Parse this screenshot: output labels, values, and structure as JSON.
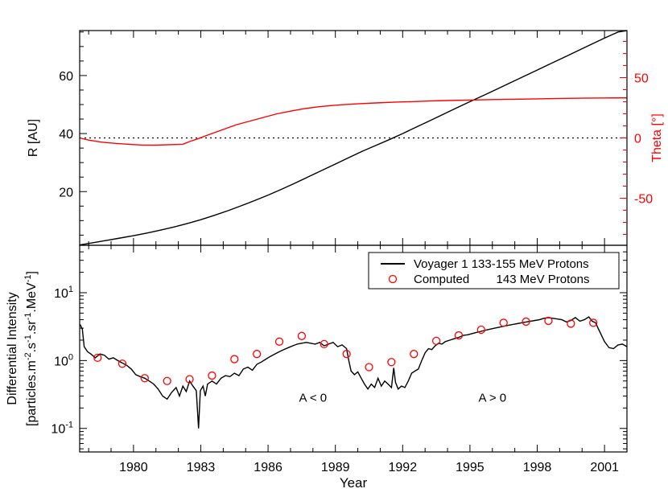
{
  "chart_data": [
    {
      "type": "line",
      "panel": "top",
      "x_range": [
        1977.6,
        2002.0
      ],
      "xticks": [
        1980,
        1983,
        1986,
        1989,
        1992,
        1995,
        1998,
        2001
      ],
      "left_axis": {
        "label": "R [AU]",
        "ylim": [
          1.5,
          75.5
        ],
        "ticks": [
          20,
          40,
          60
        ]
      },
      "right_axis": {
        "label": "Theta [°]",
        "ylim": [
          -89,
          89
        ],
        "ticks": [
          -50,
          0,
          50
        ],
        "color": "#ff0000"
      },
      "reference_line": {
        "axis": "right",
        "value": 0,
        "style": "dotted"
      },
      "series": [
        {
          "axis": "left",
          "color": "#000000",
          "points": [
            [
              1977.6,
              1.6
            ],
            [
              1978.2,
              2.4
            ],
            [
              1978.8,
              3.2
            ],
            [
              1979.4,
              4.0
            ],
            [
              1980.0,
              4.8
            ],
            [
              1980.6,
              5.7
            ],
            [
              1981.2,
              6.7
            ],
            [
              1981.8,
              7.8
            ],
            [
              1982.4,
              9.0
            ],
            [
              1983.0,
              10.3
            ],
            [
              1983.6,
              11.8
            ],
            [
              1984.2,
              13.4
            ],
            [
              1984.8,
              15.1
            ],
            [
              1985.4,
              16.9
            ],
            [
              1986.0,
              18.8
            ],
            [
              1986.6,
              20.8
            ],
            [
              1987.2,
              22.9
            ],
            [
              1987.8,
              25.1
            ],
            [
              1988.4,
              27.3
            ],
            [
              1989.0,
              29.5
            ],
            [
              1989.6,
              31.7
            ],
            [
              1990.2,
              33.9
            ],
            [
              1990.8,
              35.9
            ],
            [
              1991.4,
              37.9
            ],
            [
              1992.0,
              40.0
            ],
            [
              1992.6,
              42.2
            ],
            [
              1993.2,
              44.4
            ],
            [
              1993.8,
              46.6
            ],
            [
              1994.4,
              48.8
            ],
            [
              1995.0,
              51.0
            ],
            [
              1995.6,
              53.1
            ],
            [
              1996.2,
              55.3
            ],
            [
              1996.8,
              57.5
            ],
            [
              1997.4,
              59.7
            ],
            [
              1998.0,
              61.9
            ],
            [
              1998.6,
              64.1
            ],
            [
              1999.2,
              66.3
            ],
            [
              1999.8,
              68.5
            ],
            [
              2000.4,
              70.7
            ],
            [
              2001.0,
              72.9
            ],
            [
              2001.6,
              75.0
            ],
            [
              2002.0,
              75.5
            ]
          ]
        },
        {
          "axis": "right",
          "color": "#ff0000",
          "points": [
            [
              1977.6,
              0.0
            ],
            [
              1978.0,
              -1.8
            ],
            [
              1978.6,
              -3.5
            ],
            [
              1979.2,
              -4.5
            ],
            [
              1979.8,
              -5.3
            ],
            [
              1980.4,
              -5.9
            ],
            [
              1981.0,
              -6.0
            ],
            [
              1981.6,
              -5.6
            ],
            [
              1982.2,
              -5.3
            ],
            [
              1982.5,
              -3.0
            ],
            [
              1982.9,
              -0.5
            ],
            [
              1983.4,
              3.0
            ],
            [
              1984.0,
              7.0
            ],
            [
              1984.6,
              11.0
            ],
            [
              1985.2,
              14.0
            ],
            [
              1985.8,
              17.0
            ],
            [
              1986.4,
              20.0
            ],
            [
              1987.0,
              22.2
            ],
            [
              1987.6,
              24.2
            ],
            [
              1988.2,
              25.7
            ],
            [
              1988.8,
              26.8
            ],
            [
              1989.4,
              27.6
            ],
            [
              1990.0,
              28.3
            ],
            [
              1990.8,
              29.0
            ],
            [
              1991.6,
              29.6
            ],
            [
              1992.4,
              30.1
            ],
            [
              1993.2,
              30.6
            ],
            [
              1994.0,
              31.0
            ],
            [
              1995.0,
              31.4
            ],
            [
              1996.0,
              31.8
            ],
            [
              1997.0,
              32.1
            ],
            [
              1998.0,
              32.4
            ],
            [
              1999.0,
              32.7
            ],
            [
              2000.0,
              32.9
            ],
            [
              2001.0,
              33.1
            ],
            [
              2002.0,
              33.2
            ]
          ]
        }
      ]
    },
    {
      "type": "line",
      "panel": "bottom",
      "xlabel": "Year",
      "x_range": [
        1977.6,
        2002.0
      ],
      "xticks": [
        1980,
        1983,
        1986,
        1989,
        1992,
        1995,
        1998,
        2001
      ],
      "y_axis": {
        "label_line1": "Differential Intensity",
        "label_line2": "[particles.m-2.s-1.sr-1.MeV-1]",
        "scale": "log",
        "ylim": [
          0.045,
          50
        ],
        "ticks": [
          0.1,
          1,
          10
        ]
      },
      "legend": {
        "placement": "top-right",
        "entries": [
          "Voyager 1 133-155 MeV Protons",
          "Computed        143 MeV Protons"
        ]
      },
      "annotations": [
        {
          "text": "A < 0",
          "x": 1988.0,
          "y": 0.29
        },
        {
          "text": "A > 0",
          "x": 1996.0,
          "y": 0.29
        }
      ],
      "series": [
        {
          "name": "Voyager 1 133-155 MeV Protons",
          "color": "#000000",
          "marker": "line",
          "points": [
            [
              1977.62,
              3.4
            ],
            [
              1977.72,
              2.9
            ],
            [
              1977.8,
              1.6
            ],
            [
              1977.95,
              1.35
            ],
            [
              1978.1,
              1.25
            ],
            [
              1978.3,
              1.1
            ],
            [
              1978.5,
              1.25
            ],
            [
              1978.7,
              1.2
            ],
            [
              1978.9,
              1.05
            ],
            [
              1979.1,
              1.1
            ],
            [
              1979.3,
              1.0
            ],
            [
              1979.5,
              0.92
            ],
            [
              1979.7,
              0.85
            ],
            [
              1979.9,
              0.75
            ],
            [
              1980.1,
              0.62
            ],
            [
              1980.3,
              0.58
            ],
            [
              1980.5,
              0.55
            ],
            [
              1980.7,
              0.5
            ],
            [
              1980.9,
              0.45
            ],
            [
              1981.1,
              0.38
            ],
            [
              1981.3,
              0.3
            ],
            [
              1981.5,
              0.27
            ],
            [
              1981.7,
              0.34
            ],
            [
              1981.9,
              0.4
            ],
            [
              1982.05,
              0.3
            ],
            [
              1982.2,
              0.42
            ],
            [
              1982.35,
              0.35
            ],
            [
              1982.5,
              0.5
            ],
            [
              1982.65,
              0.42
            ],
            [
              1982.8,
              0.36
            ],
            [
              1982.9,
              0.1
            ],
            [
              1982.98,
              0.36
            ],
            [
              1983.1,
              0.42
            ],
            [
              1983.2,
              0.3
            ],
            [
              1983.3,
              0.45
            ],
            [
              1983.5,
              0.5
            ],
            [
              1983.7,
              0.45
            ],
            [
              1983.9,
              0.55
            ],
            [
              1984.1,
              0.6
            ],
            [
              1984.3,
              0.58
            ],
            [
              1984.5,
              0.65
            ],
            [
              1984.7,
              0.6
            ],
            [
              1984.9,
              0.75
            ],
            [
              1985.1,
              0.8
            ],
            [
              1985.3,
              0.72
            ],
            [
              1985.5,
              0.88
            ],
            [
              1985.7,
              0.95
            ],
            [
              1985.9,
              1.05
            ],
            [
              1986.1,
              1.15
            ],
            [
              1986.3,
              1.25
            ],
            [
              1986.5,
              1.35
            ],
            [
              1986.7,
              1.45
            ],
            [
              1986.9,
              1.55
            ],
            [
              1987.1,
              1.65
            ],
            [
              1987.3,
              1.75
            ],
            [
              1987.5,
              1.8
            ],
            [
              1987.7,
              1.85
            ],
            [
              1987.9,
              1.8
            ],
            [
              1988.1,
              1.75
            ],
            [
              1988.3,
              1.85
            ],
            [
              1988.5,
              1.65
            ],
            [
              1988.7,
              1.75
            ],
            [
              1988.9,
              1.85
            ],
            [
              1989.1,
              1.6
            ],
            [
              1989.3,
              1.7
            ],
            [
              1989.5,
              1.5
            ],
            [
              1989.6,
              1.0
            ],
            [
              1989.7,
              0.7
            ],
            [
              1989.85,
              0.62
            ],
            [
              1990.0,
              0.68
            ],
            [
              1990.15,
              0.55
            ],
            [
              1990.3,
              0.45
            ],
            [
              1990.45,
              0.38
            ],
            [
              1990.6,
              0.45
            ],
            [
              1990.75,
              0.4
            ],
            [
              1990.9,
              0.55
            ],
            [
              1991.05,
              0.42
            ],
            [
              1991.2,
              0.5
            ],
            [
              1991.35,
              0.45
            ],
            [
              1991.5,
              0.4
            ],
            [
              1991.6,
              0.78
            ],
            [
              1991.68,
              0.48
            ],
            [
              1991.8,
              0.38
            ],
            [
              1991.95,
              0.42
            ],
            [
              1992.1,
              0.4
            ],
            [
              1992.25,
              0.5
            ],
            [
              1992.4,
              0.65
            ],
            [
              1992.55,
              0.7
            ],
            [
              1992.7,
              0.75
            ],
            [
              1992.85,
              1.0
            ],
            [
              1993.0,
              1.3
            ],
            [
              1993.15,
              1.5
            ],
            [
              1993.3,
              1.45
            ],
            [
              1993.45,
              1.65
            ],
            [
              1993.6,
              1.8
            ],
            [
              1993.75,
              1.75
            ],
            [
              1993.9,
              1.9
            ],
            [
              1994.1,
              2.0
            ],
            [
              1994.3,
              2.1
            ],
            [
              1994.5,
              2.2
            ],
            [
              1994.7,
              2.35
            ],
            [
              1994.9,
              2.4
            ],
            [
              1995.1,
              2.5
            ],
            [
              1995.3,
              2.6
            ],
            [
              1995.5,
              2.7
            ],
            [
              1995.7,
              2.8
            ],
            [
              1995.9,
              2.9
            ],
            [
              1996.1,
              3.0
            ],
            [
              1996.3,
              3.1
            ],
            [
              1996.5,
              3.2
            ],
            [
              1996.7,
              3.3
            ],
            [
              1996.9,
              3.4
            ],
            [
              1997.1,
              3.5
            ],
            [
              1997.3,
              3.6
            ],
            [
              1997.5,
              3.7
            ],
            [
              1997.7,
              3.8
            ],
            [
              1997.9,
              3.9
            ],
            [
              1998.1,
              4.0
            ],
            [
              1998.3,
              4.2
            ],
            [
              1998.5,
              4.3
            ],
            [
              1998.7,
              4.2
            ],
            [
              1998.9,
              4.1
            ],
            [
              1999.1,
              4.0
            ],
            [
              1999.3,
              3.7
            ],
            [
              1999.5,
              3.9
            ],
            [
              1999.7,
              4.3
            ],
            [
              1999.9,
              3.8
            ],
            [
              2000.1,
              4.0
            ],
            [
              2000.3,
              4.4
            ],
            [
              2000.45,
              3.8
            ],
            [
              2000.6,
              3.6
            ],
            [
              2000.8,
              2.6
            ],
            [
              2001.0,
              1.9
            ],
            [
              2001.2,
              1.55
            ],
            [
              2001.4,
              1.5
            ],
            [
              2001.6,
              1.7
            ],
            [
              2001.8,
              1.75
            ],
            [
              2002.0,
              1.6
            ]
          ]
        },
        {
          "name": "Computed        143 MeV Protons",
          "color": "#ff0000",
          "marker": "open-circle",
          "points": [
            [
              1978.4,
              1.1
            ],
            [
              1979.5,
              0.9
            ],
            [
              1980.5,
              0.55
            ],
            [
              1981.5,
              0.5
            ],
            [
              1982.5,
              0.53
            ],
            [
              1983.5,
              0.6
            ],
            [
              1984.5,
              1.05
            ],
            [
              1985.5,
              1.25
            ],
            [
              1986.5,
              1.9
            ],
            [
              1987.5,
              2.3
            ],
            [
              1988.5,
              1.75
            ],
            [
              1989.5,
              1.25
            ],
            [
              1990.5,
              0.8
            ],
            [
              1991.5,
              0.95
            ],
            [
              1992.5,
              1.25
            ],
            [
              1993.5,
              1.95
            ],
            [
              1994.5,
              2.35
            ],
            [
              1995.5,
              2.85
            ],
            [
              1996.5,
              3.6
            ],
            [
              1997.5,
              3.75
            ],
            [
              1998.5,
              3.85
            ],
            [
              1999.5,
              3.5
            ],
            [
              2000.5,
              3.6
            ]
          ]
        }
      ]
    }
  ]
}
